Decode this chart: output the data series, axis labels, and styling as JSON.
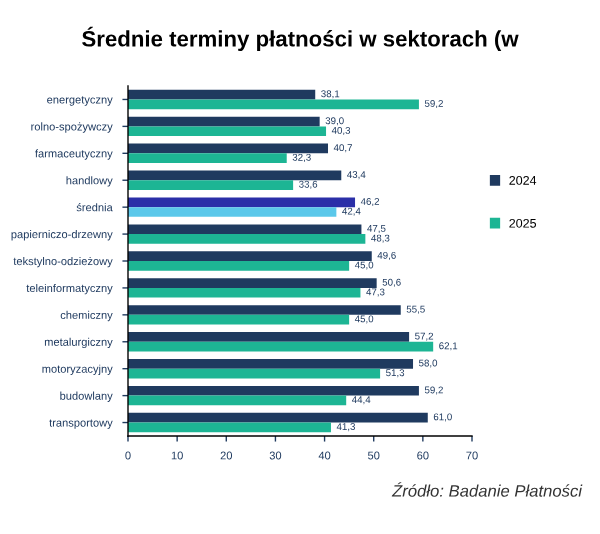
{
  "chart_data": {
    "type": "bar",
    "orientation": "horizontal",
    "title": "Średnie terminy płatności w sektorach (w",
    "categories": [
      "energetyczny",
      "rolno-spożywczy",
      "farmaceutyczny",
      "handlowy",
      "średnia",
      "papierniczo-drzewny",
      "tekstylno-odzieżowy",
      "teleinformatyczny",
      "chemiczny",
      "metalurgiczny",
      "motoryzacyjny",
      "budowlany",
      "transportowy"
    ],
    "series": [
      {
        "name": "2024",
        "color": "#1f3a5f",
        "colors": [
          "#1f3a5f",
          "#1f3a5f",
          "#1f3a5f",
          "#1f3a5f",
          "#2b2fa8",
          "#1f3a5f",
          "#1f3a5f",
          "#1f3a5f",
          "#1f3a5f",
          "#1f3a5f",
          "#1f3a5f",
          "#1f3a5f",
          "#1f3a5f"
        ],
        "values": [
          38.1,
          39.0,
          40.7,
          43.4,
          46.2,
          47.5,
          49.6,
          50.6,
          55.5,
          57.2,
          58.0,
          59.2,
          61.0
        ],
        "value_labels": [
          "38,1",
          "39,0",
          "40,7",
          "43,4",
          "46,2",
          "47,5",
          "49,6",
          "50,6",
          "55,5",
          "57,2",
          "58,0",
          "59,2",
          "61,0"
        ]
      },
      {
        "name": "2025",
        "color": "#1db594",
        "colors": [
          "#1db594",
          "#1db594",
          "#1db594",
          "#1db594",
          "#5bc8ea",
          "#1db594",
          "#1db594",
          "#1db594",
          "#1db594",
          "#1db594",
          "#1db594",
          "#1db594",
          "#1db594"
        ],
        "values": [
          59.2,
          40.3,
          32.3,
          33.6,
          42.4,
          48.3,
          45.0,
          47.3,
          45.0,
          62.1,
          51.3,
          44.4,
          41.3
        ],
        "value_labels": [
          "59,2",
          "40,3",
          "32,3",
          "33,6",
          "42,4",
          "48,3",
          "45,0",
          "47,3",
          "45,0",
          "62,1",
          "51,3",
          "44,4",
          "41,3"
        ]
      }
    ],
    "xlim": [
      0,
      70
    ],
    "xticks": [
      0,
      10,
      20,
      30,
      40,
      50,
      60,
      70
    ],
    "legend": "right",
    "annotations": [
      "Źródło: Badanie Płatności"
    ]
  }
}
